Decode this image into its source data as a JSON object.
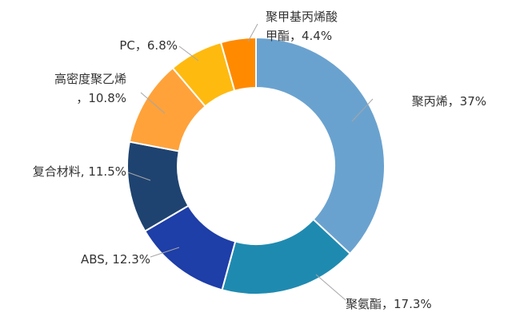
{
  "chart_data": {
    "type": "pie",
    "variant": "donut",
    "title": "",
    "slices": [
      {
        "name": "聚丙烯",
        "value": 37,
        "label_lines": [
          "聚丙烯，37%"
        ],
        "color": "#6aa2cf"
      },
      {
        "name": "聚氨酯",
        "value": 17.3,
        "label_lines": [
          "聚氨酯，17.3%"
        ],
        "color": "#1f8ab0"
      },
      {
        "name": "ABS",
        "value": 12.3,
        "label_lines": [
          "ABS, 12.3%"
        ],
        "color": "#1e3ea8"
      },
      {
        "name": "复合材料",
        "value": 11.5,
        "label_lines": [
          "复合材料, 11.5%"
        ],
        "color": "#1f4370"
      },
      {
        "name": "高密度聚乙烯",
        "value": 10.8,
        "label_lines": [
          "高密度聚乙烯",
          "，10.8%"
        ],
        "color": "#ffa23a"
      },
      {
        "name": "PC",
        "value": 6.8,
        "label_lines": [
          "PC，6.8%"
        ],
        "color": "#ffba10"
      },
      {
        "name": "聚甲基丙烯酸甲酯",
        "value": 4.4,
        "label_lines": [
          "聚甲基丙烯酸",
          "甲酯，4.4%"
        ],
        "color": "#ff8a00"
      }
    ]
  }
}
